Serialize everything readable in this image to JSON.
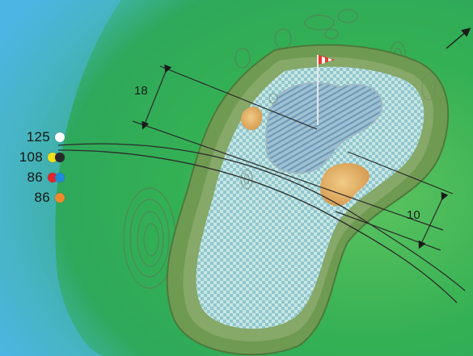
{
  "yardages": [
    {
      "distance": "125",
      "tees": [
        "#ffffff"
      ]
    },
    {
      "distance": "108",
      "tees": [
        "#f1e21a",
        "#2a2a2a"
      ]
    },
    {
      "distance": "86",
      "tees": [
        "#e0262b",
        "#1f8ad8"
      ]
    },
    {
      "distance": "86",
      "tees": [
        "#ef8a2c"
      ]
    }
  ],
  "measurements": {
    "front_depth": "18",
    "back_depth": "10"
  },
  "colors": {
    "water": "#4fb6e6",
    "rough": "#2ea64e",
    "fringe": "#6f9a52",
    "green": "#b6dcd6",
    "sand": "#e7b46b",
    "flag": "#e53b2f"
  },
  "icons": {
    "flag": "pin-flag-icon",
    "direction": "north-arrow-icon"
  }
}
